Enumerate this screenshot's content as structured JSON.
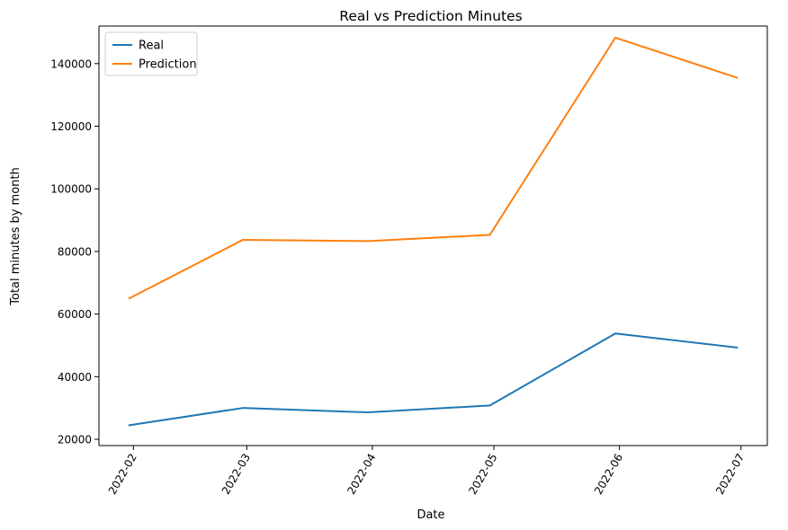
{
  "chart_data": {
    "type": "line",
    "title": "Real vs Prediction Minutes",
    "xlabel": "Date",
    "ylabel": "Total minutes by month",
    "x": [
      "2022-01-31",
      "2022-02-28",
      "2022-03-31",
      "2022-04-30",
      "2022-05-31",
      "2022-06-30"
    ],
    "x_ticks": [
      "2022-02",
      "2022-03",
      "2022-04",
      "2022-05",
      "2022-06",
      "2022-07"
    ],
    "x_tick_rotation_deg": 60,
    "y_ticks": [
      20000,
      40000,
      60000,
      80000,
      100000,
      120000,
      140000
    ],
    "ylim": [
      18000,
      152000
    ],
    "grid": false,
    "legend_position": "top-left",
    "series": [
      {
        "name": "Real",
        "color": "#1f77b4",
        "values": [
          24500,
          30000,
          28600,
          30800,
          53800,
          49300
        ]
      },
      {
        "name": "Prediction",
        "color": "#ff7f0e",
        "values": [
          65000,
          83700,
          83300,
          85300,
          148300,
          135500
        ]
      }
    ]
  }
}
